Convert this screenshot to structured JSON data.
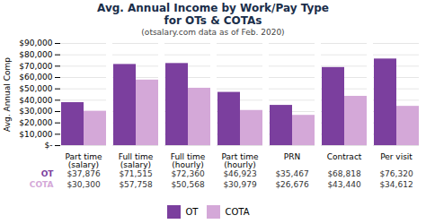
{
  "chart_data": {
    "type": "bar",
    "title": "Avg. Annual Income by Work/Pay Type\nfor OTs & COTAs",
    "subtitle": "(otsalary.com data as of Feb. 2020)",
    "ylabel": "Avg. Annual Comp",
    "categories": [
      "Part time\n(salary)",
      "Full time\n(salary)",
      "Full time\n(hourly)",
      "Part time\n(hourly)",
      "PRN",
      "Contract",
      "Per visit"
    ],
    "series": [
      {
        "name": "OT",
        "color": "#7B3F9E",
        "values": [
          37876,
          71515,
          72360,
          46923,
          35467,
          68818,
          76320
        ],
        "value_labels": [
          "$37,876",
          "$71,515",
          "$72,360",
          "$46,923",
          "$35,467",
          "$68,818",
          "$76,320"
        ]
      },
      {
        "name": "COTA",
        "color": "#D4A8D8",
        "values": [
          30300,
          57758,
          50568,
          30979,
          26676,
          43440,
          34612
        ],
        "value_labels": [
          "$30,300",
          "$57,758",
          "$50,568",
          "$30,979",
          "$26,676",
          "$43,440",
          "$34,612"
        ]
      }
    ],
    "ylim": [
      0,
      90000
    ],
    "yticks": [
      {
        "value": 0,
        "label": "$-"
      },
      {
        "value": 10000,
        "label": "$10,000"
      },
      {
        "value": 20000,
        "label": "$20,000"
      },
      {
        "value": 30000,
        "label": "$30,000"
      },
      {
        "value": 40000,
        "label": "$40,000"
      },
      {
        "value": 50000,
        "label": "$50,000"
      },
      {
        "value": 60000,
        "label": "$60,000"
      },
      {
        "value": 70000,
        "label": "$70,000"
      },
      {
        "value": 80000,
        "label": "$80,000"
      },
      {
        "value": 90000,
        "label": "$90,000"
      }
    ],
    "grid": true,
    "legend": "bottom"
  }
}
